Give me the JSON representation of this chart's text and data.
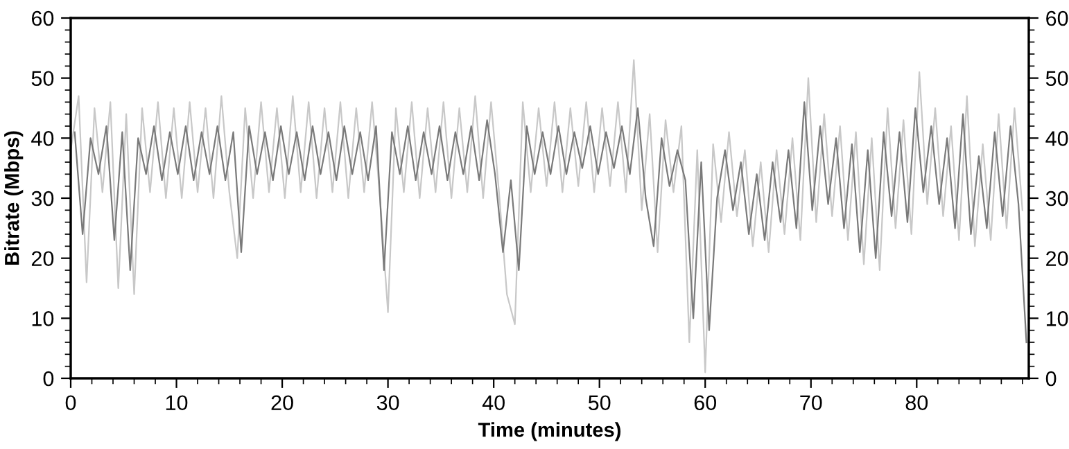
{
  "chart_data": {
    "type": "line",
    "xlabel": "Time (minutes)",
    "ylabel": "Bitrate (Mbps)",
    "xlim": [
      0,
      90.6
    ],
    "ylim": [
      0,
      60
    ],
    "y2lim": [
      0,
      60
    ],
    "xticks": [
      0,
      {
        "value": 2,
        "label": null
      },
      {
        "value": 4,
        "label": null
      },
      {
        "value": 6,
        "label": null
      },
      {
        "value": 8,
        "label": null
      },
      10,
      {
        "value": 12,
        "label": null
      },
      {
        "value": 14,
        "label": null
      },
      {
        "value": 16,
        "label": null
      },
      {
        "value": 18,
        "label": null
      },
      20,
      {
        "value": 22,
        "label": null
      },
      {
        "value": 24,
        "label": null
      },
      {
        "value": 26,
        "label": null
      },
      {
        "value": 28,
        "label": null
      },
      30,
      {
        "value": 32,
        "label": null
      },
      {
        "value": 34,
        "label": null
      },
      {
        "value": 36,
        "label": null
      },
      {
        "value": 38,
        "label": null
      },
      40,
      {
        "value": 42,
        "label": null
      },
      {
        "value": 44,
        "label": null
      },
      {
        "value": 46,
        "label": null
      },
      {
        "value": 48,
        "label": null
      },
      50,
      {
        "value": 52,
        "label": null
      },
      {
        "value": 54,
        "label": null
      },
      {
        "value": 56,
        "label": null
      },
      {
        "value": 58,
        "label": null
      },
      60,
      {
        "value": 62,
        "label": null
      },
      {
        "value": 64,
        "label": null
      },
      {
        "value": 66,
        "label": null
      },
      {
        "value": 68,
        "label": null
      },
      70,
      {
        "value": 72,
        "label": null
      },
      {
        "value": 74,
        "label": null
      },
      {
        "value": 76,
        "label": null
      },
      {
        "value": 78,
        "label": null
      },
      80,
      {
        "value": 82,
        "label": null
      },
      {
        "value": 84,
        "label": null
      },
      {
        "value": 86,
        "label": null
      },
      {
        "value": 88,
        "label": null
      },
      {
        "value": 90,
        "label": null
      }
    ],
    "yticks": [
      0,
      {
        "value": 2,
        "label": null
      },
      {
        "value": 4,
        "label": null
      },
      {
        "value": 6,
        "label": null
      },
      {
        "value": 8,
        "label": null
      },
      10,
      {
        "value": 12,
        "label": null
      },
      {
        "value": 14,
        "label": null
      },
      {
        "value": 16,
        "label": null
      },
      {
        "value": 18,
        "label": null
      },
      20,
      {
        "value": 22,
        "label": null
      },
      {
        "value": 24,
        "label": null
      },
      {
        "value": 26,
        "label": null
      },
      {
        "value": 28,
        "label": null
      },
      30,
      {
        "value": 32,
        "label": null
      },
      {
        "value": 34,
        "label": null
      },
      {
        "value": 36,
        "label": null
      },
      {
        "value": 38,
        "label": null
      },
      40,
      {
        "value": 42,
        "label": null
      },
      {
        "value": 44,
        "label": null
      },
      {
        "value": 46,
        "label": null
      },
      {
        "value": 48,
        "label": null
      },
      50,
      {
        "value": 52,
        "label": null
      },
      {
        "value": 54,
        "label": null
      },
      {
        "value": 56,
        "label": null
      },
      {
        "value": 58,
        "label": null
      },
      60
    ],
    "y2ticks": [
      0,
      {
        "value": 2,
        "label": null
      },
      {
        "value": 4,
        "label": null
      },
      {
        "value": 6,
        "label": null
      },
      {
        "value": 8,
        "label": null
      },
      10,
      {
        "value": 12,
        "label": null
      },
      {
        "value": 14,
        "label": null
      },
      {
        "value": 16,
        "label": null
      },
      {
        "value": 18,
        "label": null
      },
      20,
      {
        "value": 22,
        "label": null
      },
      {
        "value": 24,
        "label": null
      },
      {
        "value": 26,
        "label": null
      },
      {
        "value": 28,
        "label": null
      },
      30,
      {
        "value": 32,
        "label": null
      },
      {
        "value": 34,
        "label": null
      },
      {
        "value": 36,
        "label": null
      },
      {
        "value": 38,
        "label": null
      },
      40,
      {
        "value": 42,
        "label": null
      },
      {
        "value": 44,
        "label": null
      },
      {
        "value": 46,
        "label": null
      },
      {
        "value": 48,
        "label": null
      },
      50,
      {
        "value": 52,
        "label": null
      },
      {
        "value": 54,
        "label": null
      },
      {
        "value": 56,
        "label": null
      },
      {
        "value": 58,
        "label": null
      },
      60
    ],
    "grid": false,
    "legend": false,
    "series": [
      {
        "color": "#c8c8c8",
        "x": [
          0,
          0.75,
          1.5,
          2.25,
          3,
          3.75,
          4.5,
          5.25,
          6,
          6.75,
          7.5,
          8.25,
          9,
          9.75,
          10.5,
          11.25,
          12,
          12.75,
          13.5,
          14.25,
          15,
          15.75,
          16.5,
          17.25,
          18,
          18.75,
          19.5,
          20.25,
          21,
          21.75,
          22.5,
          23.25,
          24,
          24.75,
          25.5,
          26.25,
          27,
          27.75,
          28.5,
          29.25,
          30,
          30.75,
          31.5,
          32.25,
          33,
          33.75,
          34.5,
          35.25,
          36,
          36.75,
          37.5,
          38.25,
          39,
          39.75,
          40.5,
          41.25,
          42,
          42.75,
          43.5,
          44.25,
          45,
          45.75,
          46.5,
          47.25,
          48,
          48.75,
          49.5,
          50.25,
          51,
          51.75,
          52.5,
          53.25,
          54,
          54.75,
          55.5,
          56.25,
          57,
          57.75,
          58.5,
          59.25,
          60,
          60.75,
          61.5,
          62.25,
          63,
          63.75,
          64.5,
          65.25,
          66,
          66.75,
          67.5,
          68.25,
          69,
          69.75,
          70.5,
          71.25,
          72,
          72.75,
          73.5,
          74.25,
          75,
          75.75,
          76.5,
          77.25,
          78,
          78.75,
          79.5,
          80.25,
          81,
          81.75,
          82.5,
          83.25,
          84,
          84.75,
          85.5,
          86.25,
          87,
          87.75,
          88.5,
          89.25,
          90
        ],
        "values": [
          38,
          47,
          16,
          45,
          31,
          46,
          15,
          44,
          14,
          45,
          31,
          46,
          30,
          45,
          30,
          46,
          31,
          45,
          30,
          47,
          31,
          20,
          45,
          30,
          46,
          31,
          45,
          30,
          47,
          31,
          46,
          30,
          45,
          31,
          46,
          30,
          45,
          31,
          46,
          30,
          11,
          45,
          31,
          46,
          30,
          45,
          31,
          46,
          30,
          45,
          31,
          47,
          30,
          46,
          31,
          14,
          9,
          46,
          31,
          45,
          32,
          46,
          31,
          45,
          32,
          46,
          31,
          45,
          32,
          46,
          31,
          53,
          28,
          44,
          21,
          43,
          31,
          42,
          6,
          38,
          1,
          39,
          26,
          41,
          27,
          38,
          22,
          36,
          21,
          38,
          24,
          40,
          23,
          50,
          26,
          44,
          27,
          42,
          23,
          41,
          19,
          40,
          18,
          45,
          25,
          43,
          24,
          51,
          29,
          45,
          27,
          42,
          23,
          47,
          22,
          39,
          23,
          44,
          25,
          45,
          28
        ]
      },
      {
        "color": "#7a7a7a",
        "x": [
          0.375,
          1.125,
          1.875,
          2.625,
          3.375,
          4.125,
          4.875,
          5.625,
          6.375,
          7.125,
          7.875,
          8.625,
          9.375,
          10.125,
          10.875,
          11.625,
          12.375,
          13.125,
          13.875,
          14.625,
          15.375,
          16.125,
          16.875,
          17.625,
          18.375,
          19.125,
          19.875,
          20.625,
          21.375,
          22.125,
          22.875,
          23.625,
          24.375,
          25.125,
          25.875,
          26.625,
          27.375,
          28.125,
          28.875,
          29.625,
          30.375,
          31.125,
          31.875,
          32.625,
          33.375,
          34.125,
          34.875,
          35.625,
          36.375,
          37.125,
          37.875,
          38.625,
          39.375,
          40.125,
          40.875,
          41.625,
          42.375,
          43.125,
          43.875,
          44.625,
          45.375,
          46.125,
          46.875,
          47.625,
          48.375,
          49.125,
          49.875,
          50.625,
          51.375,
          52.125,
          52.875,
          53.625,
          54.375,
          55.125,
          55.875,
          56.625,
          57.375,
          58.125,
          58.875,
          59.625,
          60.375,
          61.125,
          61.875,
          62.625,
          63.375,
          64.125,
          64.875,
          65.625,
          66.375,
          67.125,
          67.875,
          68.625,
          69.375,
          70.125,
          70.875,
          71.625,
          72.375,
          73.125,
          73.875,
          74.625,
          75.375,
          76.125,
          76.875,
          77.625,
          78.375,
          79.125,
          79.875,
          80.625,
          81.375,
          82.125,
          82.875,
          83.625,
          84.375,
          85.125,
          85.875,
          86.625,
          87.375,
          88.125,
          88.875,
          89.625,
          90.375
        ],
        "values": [
          41,
          24,
          40,
          34,
          42,
          23,
          41,
          18,
          40,
          34,
          42,
          33,
          41,
          34,
          42,
          33,
          41,
          34,
          42,
          33,
          41,
          21,
          42,
          34,
          41,
          33,
          42,
          34,
          41,
          33,
          42,
          34,
          41,
          33,
          42,
          34,
          41,
          33,
          42,
          18,
          41,
          34,
          42,
          33,
          41,
          34,
          42,
          33,
          41,
          34,
          42,
          33,
          43,
          34,
          21,
          33,
          18,
          42,
          34,
          41,
          34,
          42,
          34,
          41,
          35,
          42,
          34,
          41,
          35,
          42,
          34,
          45,
          30,
          22,
          40,
          32,
          38,
          33,
          10,
          36,
          8,
          30,
          38,
          28,
          36,
          24,
          34,
          23,
          36,
          26,
          38,
          25,
          46,
          28,
          42,
          29,
          40,
          25,
          39,
          21,
          38,
          20,
          41,
          27,
          41,
          26,
          45,
          31,
          42,
          29,
          40,
          25,
          44,
          24,
          37,
          25,
          41,
          27,
          42,
          29,
          6
        ]
      }
    ]
  }
}
